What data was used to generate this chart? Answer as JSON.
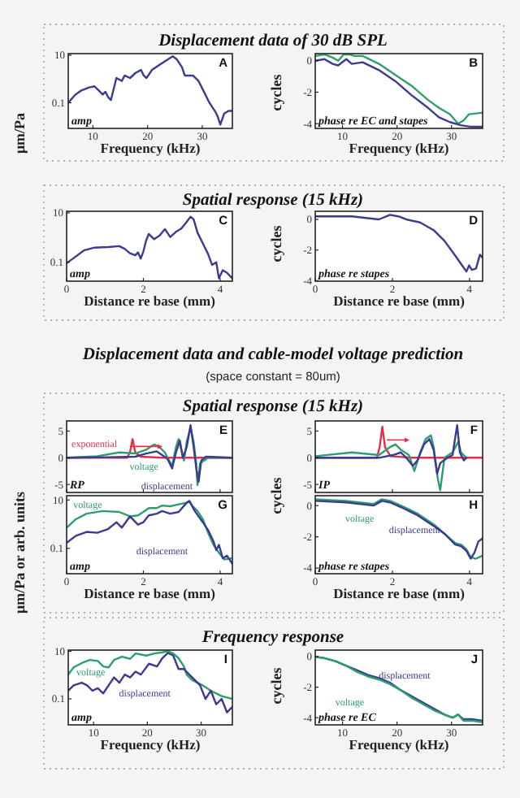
{
  "chart_data": [
    {
      "type": "line",
      "title": "Displacement data of 30 dB SPL",
      "xlabel": "Frequency (kHz)",
      "ylabel": "μm/Pa",
      "log": "y",
      "xlim": [
        5.5,
        35.5
      ],
      "ylim": [
        0.0083,
        11.7
      ],
      "xticks": [
        10,
        20,
        30
      ],
      "yticks": [
        0.1,
        10
      ],
      "annotations": [
        "A",
        "amp"
      ],
      "series": [
        {
          "color": "#3b3b8f",
          "x": [
            5.5,
            6.8,
            7.8,
            9.3,
            10.3,
            11.3,
            11.8,
            12.3,
            12.8,
            13.3,
            13.8,
            14.3,
            15.3,
            15.8,
            16.8,
            17.8,
            18.8,
            19.3,
            19.8,
            20.8,
            22.3,
            23.8,
            24.6,
            25.3,
            26.3,
            26.8,
            28.3,
            29.3,
            30.3,
            31.3,
            32.3,
            32.8,
            33.3,
            34.0,
            34.8,
            35.5
          ],
          "values": [
            0.1,
            0.22,
            0.32,
            0.44,
            0.49,
            0.29,
            0.22,
            0.29,
            0.17,
            0.13,
            0.38,
            1.1,
            0.83,
            1.4,
            1.1,
            1.8,
            2.4,
            1.4,
            1.1,
            2.4,
            4.1,
            6.9,
            9,
            6.9,
            3.1,
            1.4,
            1.4,
            0.83,
            0.29,
            0.1,
            0.045,
            0.027,
            0.012,
            0.035,
            0.045,
            0.045
          ]
        }
      ]
    },
    {
      "type": "line",
      "xlabel": "Frequency (kHz)",
      "ylabel": "cycles",
      "xlim": [
        5,
        35.7
      ],
      "ylim": [
        -4.3,
        0.45
      ],
      "xticks": [
        10,
        20,
        30
      ],
      "yticks": [
        0,
        -2,
        -4
      ],
      "annotations": [
        "B",
        "phase re EC and stapes"
      ],
      "series": [
        {
          "color": "#2e9e6e",
          "x": [
            5,
            6.7,
            8.2,
            9.2,
            10.2,
            11.2,
            12.2,
            13.7,
            16.7,
            19.7,
            22.7,
            25.7,
            27.7,
            29.7,
            31.2,
            32.2,
            33.2,
            35.7
          ],
          "values": [
            0.3,
            0.4,
            0.2,
            0,
            0.4,
            0.4,
            0.3,
            0.3,
            -0.2,
            -0.9,
            -1.6,
            -2.5,
            -3,
            -3.4,
            -4,
            -3.8,
            -3.4,
            -3.3
          ]
        },
        {
          "color": "#3b3b8f",
          "x": [
            5,
            6.7,
            8.2,
            9.2,
            10.7,
            11.7,
            13.7,
            16.7,
            19.7,
            22.7,
            25.7,
            27.7,
            29.7,
            31.7,
            33.7,
            35.7
          ],
          "values": [
            0,
            0.1,
            -0.2,
            -0.3,
            0.1,
            -0.2,
            -0.1,
            -0.6,
            -1.3,
            -2.2,
            -3,
            -3.6,
            -3.9,
            -4.1,
            -4.2,
            -4.2
          ]
        }
      ]
    },
    {
      "type": "line",
      "title": "Spatial response (15 kHz)",
      "xlabel": "Distance re base (mm)",
      "log": "y",
      "xlim": [
        0,
        4.32
      ],
      "ylim": [
        0.017,
        11.6
      ],
      "xticks": [
        0,
        2,
        4
      ],
      "yticks": [
        0.1,
        10
      ],
      "annotations": [
        "C",
        "amp"
      ],
      "series": [
        {
          "color": "#3b3b8f",
          "x": [
            0,
            0.24,
            0.45,
            0.73,
            1.08,
            1.37,
            1.51,
            1.65,
            1.79,
            1.86,
            1.93,
            2.0,
            2.07,
            2.14,
            2.28,
            2.42,
            2.56,
            2.7,
            2.85,
            2.99,
            3.13,
            3.23,
            3.31,
            3.41,
            3.55,
            3.69,
            3.79,
            3.9,
            3.97,
            4.07,
            4.18,
            4.32
          ],
          "values": [
            0.091,
            0.17,
            0.3,
            0.39,
            0.41,
            0.45,
            0.35,
            0.23,
            0.19,
            0.25,
            0.14,
            0.27,
            0.74,
            1.4,
            0.86,
            1.2,
            2.2,
            1.05,
            1.7,
            2.3,
            4.3,
            7.0,
            5.5,
            1.6,
            0.58,
            0.21,
            0.078,
            0.1,
            0.022,
            0.047,
            0.037,
            0.022
          ]
        }
      ]
    },
    {
      "type": "line",
      "xlabel": "Distance re base (mm)",
      "ylabel": "cycles",
      "xlim": [
        0,
        4.34
      ],
      "ylim": [
        -4.03,
        0.53
      ],
      "xticks": [
        0,
        2,
        4
      ],
      "yticks": [
        0,
        -2,
        -4
      ],
      "annotations": [
        "D",
        "phase re stapes"
      ],
      "series": [
        {
          "color": "#3b3b8f",
          "x": [
            0,
            0.95,
            1.65,
            1.94,
            2.15,
            2.36,
            2.72,
            3.07,
            3.35,
            3.64,
            3.78,
            3.92,
            3.99,
            4.06,
            4.17,
            4.27,
            4.34
          ],
          "values": [
            0.2,
            0.2,
            0,
            0.3,
            0.2,
            0,
            -0.2,
            -0.7,
            -1.4,
            -2.4,
            -2.9,
            -3.4,
            -3,
            -3.3,
            -3.2,
            -2.3,
            -2.5
          ]
        }
      ]
    },
    {
      "type": "other",
      "title": "Displacement data and cable-model voltage prediction",
      "subtitle": "(space constant = 80um)"
    },
    {
      "type": "line",
      "title": "Spatial response (15 kHz)",
      "xlim": [
        0,
        4.32
      ],
      "ylim": [
        -6.5,
        6.9
      ],
      "xticks": [
        0,
        2,
        4
      ],
      "yticks": [
        5,
        0,
        -5
      ],
      "tick_labels": "y",
      "annotations": [
        "E",
        "RP"
      ],
      "series": [
        {
          "name": "exponential",
          "color": "#e0304a",
          "x": [
            0,
            1.58,
            1.65,
            1.72,
            1.79,
            1.93,
            2.5,
            4.32
          ],
          "values": [
            0,
            0,
            1.0,
            3.5,
            1.0,
            0.2,
            0,
            0
          ]
        },
        {
          "name": "voltage",
          "color": "#2e9e6e",
          "x": [
            0,
            0.8,
            1.37,
            1.79,
            2.07,
            2.28,
            2.42,
            2.56,
            2.63,
            2.75,
            2.85,
            2.92,
            2.99,
            3.06,
            3.13,
            3.23,
            3.31,
            3.37,
            3.41,
            3.48,
            3.59,
            3.69,
            4.32
          ],
          "values": [
            0,
            0.3,
            1.0,
            0.8,
            1.5,
            2.5,
            2.0,
            1.0,
            0,
            -1.5,
            2.0,
            3.5,
            1.5,
            -0.5,
            3.0,
            5.6,
            3.0,
            -0.5,
            -5.1,
            -1.0,
            -0.5,
            0,
            0
          ]
        },
        {
          "name": "displacement",
          "color": "#3b3b8f",
          "x": [
            0,
            1.08,
            1.79,
            2.07,
            2.35,
            2.49,
            2.63,
            2.75,
            2.85,
            2.95,
            3.03,
            3.13,
            3.23,
            3.31,
            3.38,
            3.44,
            3.51,
            3.63,
            4.32
          ],
          "values": [
            0,
            0.1,
            0.2,
            0.8,
            1.2,
            0.5,
            -0.2,
            -2.0,
            1.0,
            3.2,
            0,
            2.0,
            6.1,
            2.0,
            -2.0,
            -4.5,
            -0.5,
            0.2,
            0
          ]
        }
      ]
    },
    {
      "type": "line",
      "xlim": [
        0,
        4.34
      ],
      "ylim": [
        -6.5,
        6.9
      ],
      "xticks": [
        0,
        2,
        4
      ],
      "yticks": [
        5,
        0,
        -5
      ],
      "tick_labels": "y",
      "annotations": [
        "F",
        "IP"
      ],
      "series": [
        {
          "color": "#e0304a",
          "x": [
            0,
            1.6,
            1.67,
            1.74,
            1.81,
            1.95,
            2.5,
            4.34
          ],
          "values": [
            0,
            0,
            2.0,
            5.8,
            2.0,
            0.3,
            0,
            0
          ]
        },
        {
          "color": "#2e9e6e",
          "x": [
            0,
            0.95,
            1.65,
            1.94,
            2.08,
            2.22,
            2.43,
            2.57,
            2.72,
            2.86,
            3.0,
            3.07,
            3.18,
            3.24,
            3.35,
            3.56,
            3.71,
            3.78,
            3.92
          ],
          "values": [
            0.3,
            1.0,
            0.5,
            2.0,
            2.5,
            1.5,
            0.5,
            -2.5,
            1.0,
            3.5,
            4.2,
            2.0,
            -4.0,
            -6.1,
            0,
            1.0,
            3.0,
            1.0,
            0
          ]
        },
        {
          "color": "#3b3b8f",
          "x": [
            0,
            1.65,
            2.01,
            2.22,
            2.36,
            2.53,
            2.65,
            2.82,
            2.96,
            3.07,
            3.16,
            3.24,
            3.43,
            3.56,
            3.68,
            3.75,
            3.85,
            3.92
          ],
          "values": [
            0,
            0,
            0.5,
            1.0,
            0,
            -1.5,
            -0.5,
            2.5,
            3.5,
            1.5,
            -3.0,
            -1.0,
            0,
            0.5,
            6.1,
            1.0,
            -0.5,
            0
          ]
        }
      ]
    },
    {
      "type": "line",
      "xlabel": "Distance re base (mm)",
      "ylabel": "μm/Pa or arb. units",
      "log": "y",
      "xlim": [
        0,
        4.32
      ],
      "ylim": [
        0.009,
        15
      ],
      "xticks": [
        0,
        2,
        4
      ],
      "yticks": [
        0.1,
        10
      ],
      "annotations": [
        "G",
        "amp"
      ],
      "series": [
        {
          "name": "voltage",
          "color": "#2e9e6e",
          "x": [
            0,
            0.24,
            0.52,
            0.94,
            1.37,
            1.65,
            1.86,
            2.0,
            2.14,
            2.35,
            2.49,
            2.7,
            2.92,
            3.13,
            3.2,
            3.27,
            3.41,
            3.55,
            3.69,
            3.83,
            3.97,
            4.11,
            4.32
          ],
          "values": [
            0.72,
            1.6,
            2.7,
            3.5,
            3.2,
            2.1,
            2.3,
            3.2,
            4.6,
            4.6,
            5.9,
            5.5,
            6.6,
            7.7,
            9,
            5.9,
            3.5,
            1.6,
            0.43,
            0.14,
            0.066,
            0.035,
            0.039
          ]
        },
        {
          "name": "displacement",
          "color": "#3b3b8f",
          "x": [
            0,
            0.24,
            0.52,
            0.8,
            1.08,
            1.3,
            1.44,
            1.65,
            1.86,
            2.0,
            2.14,
            2.35,
            2.49,
            2.7,
            2.92,
            3.13,
            3.2,
            3.34,
            3.55,
            3.69,
            3.83,
            3.9,
            3.97,
            4.07,
            4.18,
            4.32
          ],
          "values": [
            0.17,
            0.33,
            0.48,
            0.44,
            0.63,
            1.2,
            0.72,
            2.1,
            0.95,
            1.2,
            2.3,
            2.7,
            3.5,
            2.7,
            3.2,
            7.7,
            9,
            3.5,
            1.2,
            0.56,
            0.19,
            0.085,
            0.14,
            0.039,
            0.05,
            0.023
          ]
        }
      ]
    },
    {
      "type": "line",
      "xlabel": "Distance re base (mm)",
      "ylabel": "cycles",
      "xlim": [
        0,
        4.34
      ],
      "ylim": [
        -4.36,
        0.63
      ],
      "xticks": [
        0,
        2,
        4
      ],
      "yticks": [
        0,
        -2,
        -4
      ],
      "annotations": [
        "H",
        "phase re stapes"
      ],
      "series": [
        {
          "name": "voltage",
          "color": "#2e9e6e",
          "x": [
            0,
            0.81,
            1.51,
            1.73,
            1.94,
            2.22,
            2.64,
            3.07,
            3.35,
            3.63,
            3.78,
            3.92,
            4.03,
            4.17,
            4.34
          ],
          "values": [
            0.4,
            0.3,
            0.1,
            0.4,
            0.3,
            0,
            -0.5,
            -1.2,
            -1.8,
            -2.4,
            -2.5,
            -2.8,
            -3.3,
            -3.4,
            -3.2
          ]
        },
        {
          "name": "displacement",
          "color": "#3b3b8f",
          "x": [
            0,
            0.81,
            1.51,
            1.73,
            1.94,
            2.22,
            2.64,
            3.07,
            3.35,
            3.63,
            3.78,
            3.92,
            4.03,
            4.13,
            4.23,
            4.34
          ],
          "values": [
            0.3,
            0.2,
            0,
            0.3,
            0.2,
            -0.1,
            -0.6,
            -1.3,
            -1.8,
            -2.5,
            -2.6,
            -2.9,
            -3.4,
            -3,
            -2.3,
            -2.1
          ]
        }
      ]
    },
    {
      "type": "line",
      "title": "Frequency response",
      "log": "y",
      "xlabel": "Frequency (kHz)",
      "xlim": [
        5.3,
        35.8
      ],
      "ylim": [
        0.0081,
        11.2
      ],
      "xticks": [
        10,
        20,
        30
      ],
      "yticks": [
        0.1,
        10
      ],
      "annotations": [
        "I",
        "amp"
      ],
      "series": [
        {
          "name": "voltage",
          "color": "#2e9e6e",
          "x": [
            5.3,
            6.3,
            7.8,
            9.3,
            10.8,
            11.8,
            12.8,
            13.8,
            15.3,
            16.8,
            17.8,
            19.8,
            21.3,
            22.8,
            23.8,
            24.8,
            25.8,
            26.8,
            27.3,
            28.3,
            29.3,
            30.3,
            31.8,
            33.8,
            35.8
          ],
          "values": [
            1.05,
            2.1,
            3.2,
            4.3,
            3.9,
            2.3,
            2.1,
            4.3,
            5.9,
            4.8,
            8.1,
            6.6,
            8.1,
            9,
            10,
            8.1,
            5.1,
            2.3,
            1.05,
            0.63,
            0.48,
            0.37,
            0.22,
            0.13,
            0.1
          ]
        },
        {
          "name": "displacement",
          "color": "#3b3b8f",
          "x": [
            5.3,
            6.3,
            7.8,
            8.8,
            9.8,
            10.8,
            11.8,
            12.8,
            13.8,
            14.8,
            15.8,
            16.8,
            17.8,
            18.8,
            20.3,
            21.8,
            22.8,
            23.8,
            24.8,
            25.8,
            26.8,
            27.8,
            28.8,
            29.8,
            30.8,
            31.8,
            32.8,
            33.8,
            34.8,
            35.8
          ],
          "values": [
            0.22,
            0.37,
            0.48,
            0.37,
            0.22,
            0.28,
            0.17,
            0.37,
            0.8,
            0.48,
            1.05,
            0.8,
            1.4,
            1.05,
            3.0,
            2.3,
            5.2,
            8.5,
            6.6,
            1.8,
            1.8,
            1.05,
            0.63,
            0.37,
            0.1,
            0.22,
            0.059,
            0.1,
            0.027,
            0.046
          ]
        }
      ]
    },
    {
      "type": "line",
      "xlabel": "Frequency (kHz)",
      "ylabel": "cycles",
      "xlim": [
        5,
        35.7
      ],
      "ylim": [
        -4.47,
        0.43
      ],
      "xticks": [
        10,
        20,
        30
      ],
      "yticks": [
        0,
        -2,
        -4
      ],
      "annotations": [
        "J",
        "phase re EC"
      ],
      "series": [
        {
          "name": "displacement",
          "color": "#3b3b8f",
          "x": [
            5,
            6.7,
            8.7,
            10.7,
            12.7,
            14.7,
            16.7,
            18.7,
            20.7,
            22.7,
            24.7,
            26.7,
            28.7,
            30.2,
            31.2,
            32.2,
            33.7,
            35.7
          ],
          "values": [
            0,
            -0.1,
            -0.3,
            -0.6,
            -0.9,
            -1.2,
            -1.4,
            -1.7,
            -2.2,
            -2.6,
            -3,
            -3.4,
            -3.8,
            -4,
            -3.8,
            -4.1,
            -4.1,
            -4.2
          ]
        },
        {
          "name": "voltage",
          "color": "#2e9e6e",
          "x": [
            5,
            6.7,
            8.7,
            10.7,
            12.7,
            14.7,
            16.7,
            18.7,
            20.7,
            22.7,
            24.7,
            26.7,
            28.7,
            30.2,
            31.2,
            32.2,
            33.7,
            35.7
          ],
          "values": [
            0,
            -0.1,
            -0.3,
            -0.6,
            -1,
            -1.3,
            -1.5,
            -1.8,
            -2.2,
            -2.7,
            -3.1,
            -3.5,
            -3.8,
            -4,
            -3.8,
            -4.2,
            -4.2,
            -4.3
          ]
        }
      ]
    }
  ]
}
